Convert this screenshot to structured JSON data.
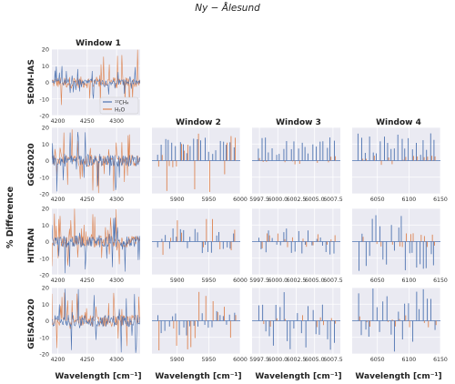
{
  "figure": {
    "suptitle": "Ny − Ålesund",
    "ylabel": "% Difference",
    "windows": [
      "Window 1",
      "Window 2",
      "Window 3",
      "Window 4"
    ],
    "rows": [
      "SEOM-IAS",
      "GGG2020",
      "HITRAN",
      "GEISA2020"
    ],
    "xlabel": "Wavelength [cm⁻¹]",
    "legend": [
      "¹²CH₄",
      "H₂O"
    ],
    "colors": {
      "ch4": "#4c72b0",
      "h2o": "#dd8452",
      "panel_bg": "#eaeaf2",
      "grid": "#ffffff"
    }
  },
  "chart_data": {
    "type": "line",
    "description_units": {
      "x": "cm^-1",
      "y": "% difference"
    },
    "grid": true,
    "series_names": [
      "¹²CH₄",
      "H₂O"
    ],
    "yticks": [
      -20,
      -10,
      0,
      10,
      20
    ],
    "ylim": [
      -20,
      20
    ],
    "windows": [
      {
        "title": "Window 1",
        "xlim": [
          4190,
          4340
        ],
        "xticks": [
          4200,
          4250,
          4300
        ],
        "xticklabels": [
          "4200",
          "4250",
          "4300"
        ]
      },
      {
        "title": "Window 2",
        "xlim": [
          5860,
          6000
        ],
        "xticks": [
          5900,
          5950,
          6000
        ],
        "xticklabels": [
          "5900",
          "5950",
          "6000"
        ]
      },
      {
        "title": "Window 3",
        "xlim": [
          5996.5,
          6008.5
        ],
        "xticks": [
          5997.5,
          6000.0,
          6002.5,
          6005.0,
          6007.5
        ],
        "xticklabels": [
          "5997.5",
          "6000.0",
          "6002.5",
          "6005.0",
          "6007.5"
        ]
      },
      {
        "title": "Window 4",
        "xlim": [
          6010,
          6150
        ],
        "xticks": [
          6050,
          6100,
          6150
        ],
        "xticklabels": [
          "6050",
          "6100",
          "6150"
        ]
      }
    ],
    "panels": [
      {
        "row": "SEOM-IAS",
        "window": "Window 1",
        "ch4_amp": 10,
        "h2o_amp": 20,
        "dense": true,
        "legend": true
      },
      {
        "row": "GGG2020",
        "window": "Window 1",
        "ch4_amp": 20,
        "h2o_amp": 20,
        "dense": true
      },
      {
        "row": "GGG2020",
        "window": "Window 2",
        "ch4_amp": 15,
        "h2o_amp": 20
      },
      {
        "row": "GGG2020",
        "window": "Window 3",
        "ch4_amp": 14,
        "h2o_amp": 3
      },
      {
        "row": "GGG2020",
        "window": "Window 4",
        "ch4_amp": 17,
        "h2o_amp": 3
      },
      {
        "row": "HITRAN",
        "window": "Window 1",
        "ch4_amp": 20,
        "h2o_amp": 20,
        "dense": true
      },
      {
        "row": "HITRAN",
        "window": "Window 2",
        "ch4_amp": 8,
        "h2o_amp": 15
      },
      {
        "row": "HITRAN",
        "window": "Window 3",
        "ch4_amp": 8,
        "h2o_amp": 5
      },
      {
        "row": "HITRAN",
        "window": "Window 4",
        "ch4_amp": 18,
        "h2o_amp": 5
      },
      {
        "row": "GEISA2020",
        "window": "Window 1",
        "ch4_amp": 20,
        "h2o_amp": 20,
        "dense": true
      },
      {
        "row": "GEISA2020",
        "window": "Window 2",
        "ch4_amp": 10,
        "h2o_amp": 18
      },
      {
        "row": "GEISA2020",
        "window": "Window 3",
        "ch4_amp": 18,
        "h2o_amp": 4
      },
      {
        "row": "GEISA2020",
        "window": "Window 4",
        "ch4_amp": 20,
        "h2o_amp": 4
      }
    ]
  }
}
